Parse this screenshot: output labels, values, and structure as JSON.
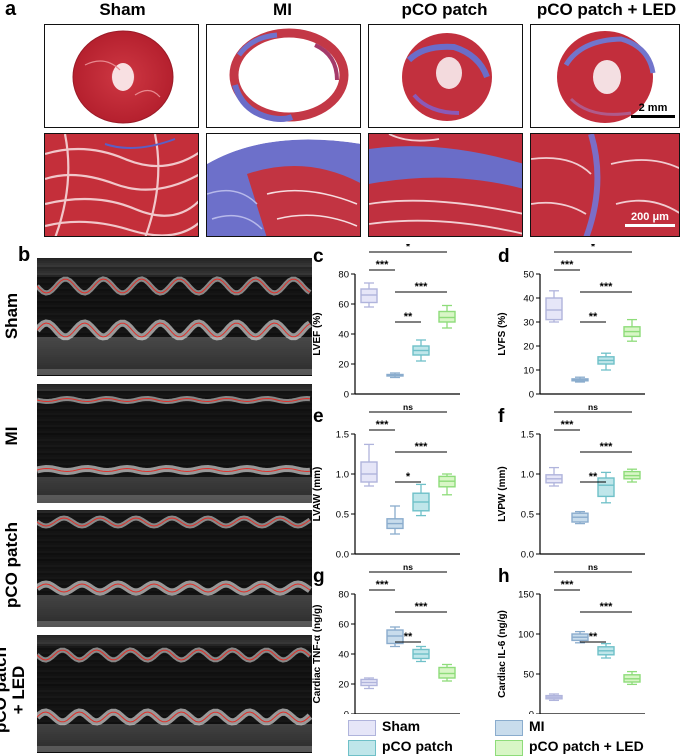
{
  "panel_a": {
    "letter": "a",
    "columns": [
      "Sham",
      "MI",
      "pCO patch",
      "pCO patch + LED"
    ],
    "scale_top": "2 mm",
    "scale_bottom": "200 μm"
  },
  "panel_b": {
    "letter": "b",
    "rows": [
      "Sham",
      "MI",
      "pCO patch",
      "pCO patch\n+ LED"
    ]
  },
  "legend": {
    "items": [
      {
        "label": "Sham",
        "fill": "#e6e6f8",
        "stroke": "#b0b4dc"
      },
      {
        "label": "MI",
        "fill": "#c8dcec",
        "stroke": "#8aaccd"
      },
      {
        "label": "pCO patch",
        "fill": "#bfe6ea",
        "stroke": "#6fc0c8"
      },
      {
        "label": "pCO patch + LED",
        "fill": "#d8f6c6",
        "stroke": "#8edc7a"
      }
    ]
  },
  "chart_data": [
    {
      "type": "box",
      "letter": "c",
      "ylabel": "LVEF (%)",
      "ylim": [
        0,
        80
      ],
      "yticks": [
        0,
        20,
        40,
        60,
        80
      ],
      "groups": [
        "Sham",
        "MI",
        "pCO patch",
        "pCO patch + LED"
      ],
      "boxes": [
        {
          "min": 58,
          "q1": 61,
          "median": 66,
          "q3": 70,
          "max": 74
        },
        {
          "min": 11,
          "q1": 12,
          "median": 12.5,
          "q3": 13,
          "max": 14
        },
        {
          "min": 22,
          "q1": 26,
          "median": 29,
          "q3": 32,
          "max": 36
        },
        {
          "min": 44,
          "q1": 48,
          "median": 51,
          "q3": 55,
          "max": 59
        }
      ],
      "sig": [
        {
          "from": 0,
          "to": 1,
          "label": "***"
        },
        {
          "from": 0,
          "to": 3,
          "label": "*"
        },
        {
          "from": 1,
          "to": 3,
          "label": "***"
        },
        {
          "from": 1,
          "to": 2,
          "label": "**"
        }
      ]
    },
    {
      "type": "box",
      "letter": "d",
      "ylabel": "LVFS (%)",
      "ylim": [
        0,
        50
      ],
      "yticks": [
        0,
        10,
        20,
        30,
        40,
        50
      ],
      "groups": [
        "Sham",
        "MI",
        "pCO patch",
        "pCO patch + LED"
      ],
      "boxes": [
        {
          "min": 30,
          "q1": 31,
          "median": 35,
          "q3": 40,
          "max": 43
        },
        {
          "min": 5,
          "q1": 5.5,
          "median": 6,
          "q3": 6.3,
          "max": 7
        },
        {
          "min": 10,
          "q1": 12.5,
          "median": 14,
          "q3": 15.5,
          "max": 17
        },
        {
          "min": 22,
          "q1": 24,
          "median": 26,
          "q3": 28,
          "max": 31
        }
      ],
      "sig": [
        {
          "from": 0,
          "to": 1,
          "label": "***"
        },
        {
          "from": 0,
          "to": 3,
          "label": "*"
        },
        {
          "from": 1,
          "to": 3,
          "label": "***"
        },
        {
          "from": 1,
          "to": 2,
          "label": "**"
        }
      ]
    },
    {
      "type": "box",
      "letter": "e",
      "ylabel": "LVAW (mm)",
      "ylim": [
        0,
        1.5
      ],
      "yticks": [
        0,
        0.5,
        1.0,
        1.5
      ],
      "ytick_labels": [
        "0.0",
        "0.5",
        "1.0",
        "1.5"
      ],
      "groups": [
        "Sham",
        "MI",
        "pCO patch",
        "pCO patch + LED"
      ],
      "boxes": [
        {
          "min": 0.85,
          "q1": 0.9,
          "median": 1.0,
          "q3": 1.15,
          "max": 1.37
        },
        {
          "min": 0.25,
          "q1": 0.32,
          "median": 0.38,
          "q3": 0.44,
          "max": 0.6
        },
        {
          "min": 0.48,
          "q1": 0.54,
          "median": 0.65,
          "q3": 0.76,
          "max": 0.87
        },
        {
          "min": 0.74,
          "q1": 0.84,
          "median": 0.91,
          "q3": 0.97,
          "max": 1.0
        }
      ],
      "sig": [
        {
          "from": 0,
          "to": 1,
          "label": "***"
        },
        {
          "from": 0,
          "to": 3,
          "label": "ns"
        },
        {
          "from": 1,
          "to": 3,
          "label": "***"
        },
        {
          "from": 1,
          "to": 2,
          "label": "*"
        }
      ]
    },
    {
      "type": "box",
      "letter": "f",
      "ylabel": "LVPW (mm)",
      "ylim": [
        0,
        1.5
      ],
      "yticks": [
        0,
        0.5,
        1.0,
        1.5
      ],
      "ytick_labels": [
        "0.0",
        "0.5",
        "1.0",
        "1.5"
      ],
      "groups": [
        "Sham",
        "MI",
        "pCO patch",
        "pCO patch + LED"
      ],
      "boxes": [
        {
          "min": 0.85,
          "q1": 0.89,
          "median": 0.94,
          "q3": 0.99,
          "max": 1.08
        },
        {
          "min": 0.38,
          "q1": 0.4,
          "median": 0.46,
          "q3": 0.51,
          "max": 0.53
        },
        {
          "min": 0.64,
          "q1": 0.72,
          "median": 0.86,
          "q3": 0.95,
          "max": 1.02
        },
        {
          "min": 0.9,
          "q1": 0.94,
          "median": 0.98,
          "q3": 1.03,
          "max": 1.06
        }
      ],
      "sig": [
        {
          "from": 0,
          "to": 1,
          "label": "***"
        },
        {
          "from": 0,
          "to": 3,
          "label": "ns"
        },
        {
          "from": 1,
          "to": 3,
          "label": "***"
        },
        {
          "from": 1,
          "to": 2,
          "label": "**"
        }
      ]
    },
    {
      "type": "box",
      "letter": "g",
      "ylabel": "Cardiac TNF-α (ng/g)",
      "ylim": [
        0,
        80
      ],
      "yticks": [
        0,
        20,
        40,
        60,
        80
      ],
      "groups": [
        "Sham",
        "MI",
        "pCO patch",
        "pCO patch + LED"
      ],
      "boxes": [
        {
          "min": 17,
          "q1": 19,
          "median": 21,
          "q3": 23,
          "max": 24
        },
        {
          "min": 45,
          "q1": 47,
          "median": 52,
          "q3": 56,
          "max": 58
        },
        {
          "min": 35,
          "q1": 37,
          "median": 40,
          "q3": 43,
          "max": 45
        },
        {
          "min": 22,
          "q1": 24,
          "median": 27,
          "q3": 31,
          "max": 33
        }
      ],
      "sig": [
        {
          "from": 0,
          "to": 1,
          "label": "***"
        },
        {
          "from": 0,
          "to": 3,
          "label": "ns"
        },
        {
          "from": 1,
          "to": 3,
          "label": "***"
        },
        {
          "from": 1,
          "to": 2,
          "label": "**"
        }
      ]
    },
    {
      "type": "box",
      "letter": "h",
      "ylabel": "Cardiac IL-6 (ng/g)",
      "ylim": [
        0,
        150
      ],
      "yticks": [
        0,
        50,
        100,
        150
      ],
      "groups": [
        "Sham",
        "MI",
        "pCO patch",
        "pCO patch + LED"
      ],
      "boxes": [
        {
          "min": 17,
          "q1": 19,
          "median": 21,
          "q3": 23,
          "max": 25
        },
        {
          "min": 89,
          "q1": 92,
          "median": 96,
          "q3": 100,
          "max": 103
        },
        {
          "min": 70,
          "q1": 74,
          "median": 79,
          "q3": 84,
          "max": 88
        },
        {
          "min": 37,
          "q1": 40,
          "median": 44,
          "q3": 49,
          "max": 53
        }
      ],
      "sig": [
        {
          "from": 0,
          "to": 1,
          "label": "***"
        },
        {
          "from": 0,
          "to": 3,
          "label": "ns"
        },
        {
          "from": 1,
          "to": 3,
          "label": "***"
        },
        {
          "from": 1,
          "to": 2,
          "label": "**"
        }
      ]
    }
  ]
}
